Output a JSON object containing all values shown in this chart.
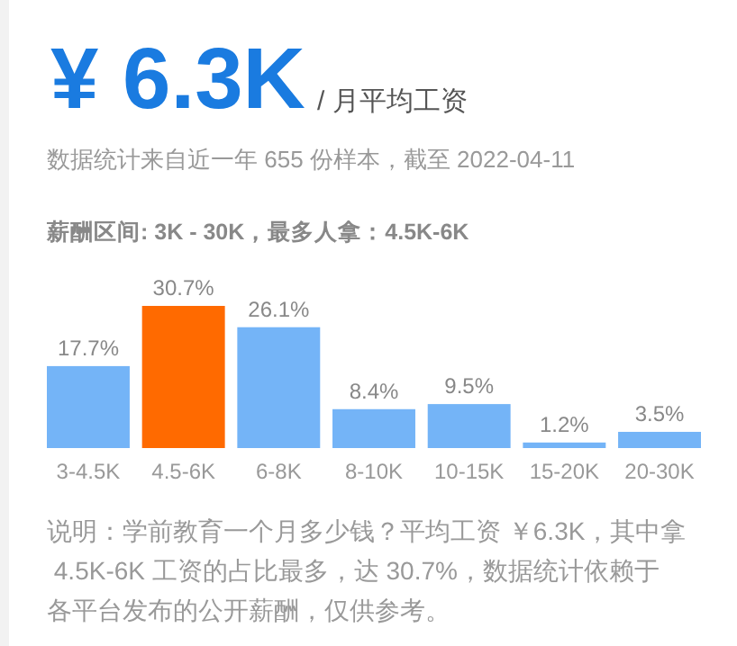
{
  "chart_data": {
    "type": "bar",
    "title": "¥ 6.3K",
    "subtitle": "/ 月平均工资",
    "annotations": [
      "数据统计来自近一年 655 份样本，截至 2022-04-11",
      "薪酬区间: 3K - 30K，最多人拿：4.5K-6K",
      "说明：学前教育一个月多少钱？平均工资 ￥6.3K，其中拿 4.5K-6K 工资的占比最多，达 30.7%，数据统计依赖于各平台发布的公开薪酬，仅供参考。"
    ],
    "categories": [
      "3-4.5K",
      "4.5-6K",
      "6-8K",
      "8-10K",
      "10-15K",
      "15-20K",
      "20-30K"
    ],
    "values": [
      17.7,
      30.7,
      26.1,
      8.4,
      9.5,
      1.2,
      3.5
    ],
    "colors": [
      "#74b4f7",
      "#ff6a00",
      "#74b4f7",
      "#74b4f7",
      "#74b4f7",
      "#74b4f7",
      "#74b4f7"
    ],
    "value_labels": [
      "17.7%",
      "30.7%",
      "26.1%",
      "8.4%",
      "9.5%",
      "1.2%",
      "3.5%"
    ]
  }
}
